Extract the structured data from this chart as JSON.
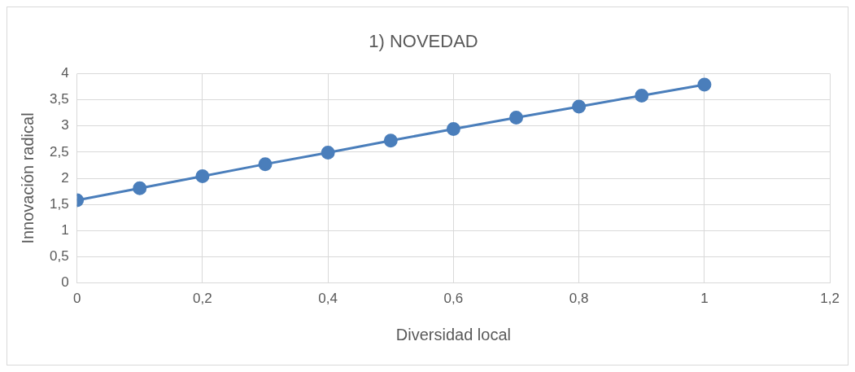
{
  "chart_data": {
    "type": "line",
    "title": "1) NOVEDAD",
    "xlabel": "Diversidad local",
    "ylabel": "Innovación radical",
    "x": [
      0,
      0.1,
      0.2,
      0.3,
      0.4,
      0.5,
      0.6,
      0.7,
      0.8,
      0.9,
      1
    ],
    "series": [
      {
        "color": "#4a7ebb",
        "values": [
          1.58,
          1.81,
          2.04,
          2.27,
          2.49,
          2.72,
          2.94,
          3.16,
          3.37,
          3.58,
          3.79
        ]
      }
    ],
    "xlim": [
      0,
      1.2
    ],
    "xticks": [
      0,
      {
        "value": 0.2,
        "label": "0,2"
      },
      {
        "value": 0.4,
        "label": "0,4"
      },
      {
        "value": 0.6,
        "label": "0,6"
      },
      {
        "value": 0.8,
        "label": "0,8"
      },
      1,
      {
        "value": 1.2,
        "label": "1,2"
      }
    ],
    "ylim": [
      0,
      4
    ],
    "yticks": [
      0,
      {
        "value": 0.5,
        "label": "0,5"
      },
      1,
      {
        "value": 1.5,
        "label": "1,5"
      },
      2,
      {
        "value": 2.5,
        "label": "2,5"
      },
      3,
      {
        "value": 3.5,
        "label": "3,5"
      },
      4
    ],
    "grid": true,
    "legend": false,
    "marker": "circle",
    "line_style": "solid"
  }
}
